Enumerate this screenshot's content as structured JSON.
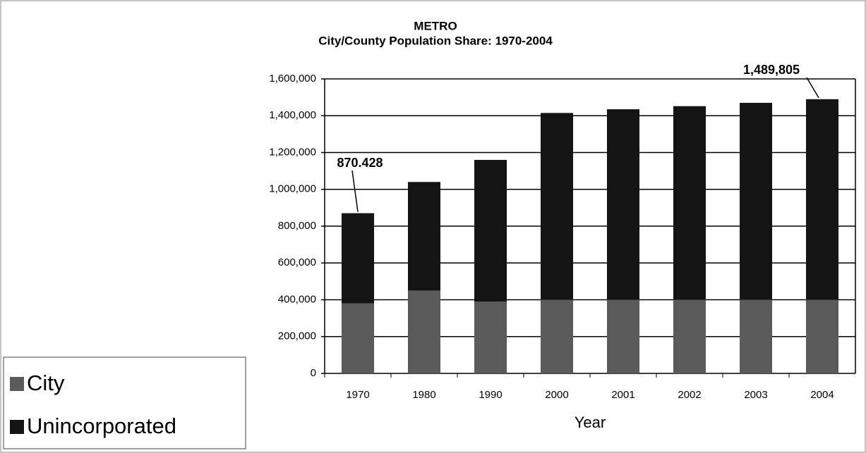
{
  "chart_data": {
    "type": "stacked_bar",
    "title": "METRO",
    "subtitle": "City/County Population Share: 1970-2004",
    "x_label": "Year",
    "categories": [
      "1970",
      "1980",
      "1990",
      "2000",
      "2001",
      "2002",
      "2003",
      "2004"
    ],
    "series": [
      {
        "name": "City",
        "color": "#5a5a5a",
        "values": [
          380000,
          450000,
          390000,
          400000,
          400000,
          400000,
          400000,
          400000
        ]
      },
      {
        "name": "Unincorporated",
        "color": "#141414",
        "values": [
          490428,
          590000,
          770000,
          1015000,
          1035000,
          1052000,
          1070000,
          1089805
        ]
      }
    ],
    "annotations": [
      {
        "text": "870.428",
        "category": "1970"
      },
      {
        "text": "1,489,805",
        "category": "2004"
      }
    ],
    "ylim": [
      0,
      1600000
    ],
    "yticks": [
      0,
      {
        "value": 200000,
        "label": "200,000"
      },
      {
        "value": 400000,
        "label": "400,000"
      },
      {
        "value": 600000,
        "label": "600,000"
      },
      {
        "value": 800000,
        "label": "800,000"
      },
      {
        "value": 1000000,
        "label": "1,000,000"
      },
      {
        "value": 1200000,
        "label": "1,200,000"
      },
      {
        "value": 1400000,
        "label": "1,400,000"
      },
      {
        "value": 1600000,
        "label": "1,600,000"
      }
    ],
    "grid": true,
    "legend": "bottom-left"
  }
}
